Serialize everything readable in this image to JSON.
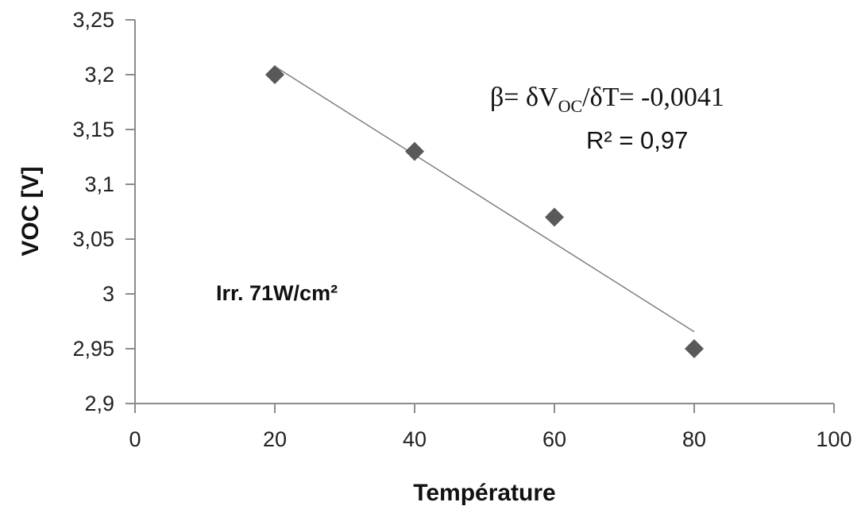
{
  "chart_data": {
    "type": "scatter",
    "xlabel": "Température",
    "ylabel": "VOC [V]",
    "xlim": [
      0,
      100
    ],
    "ylim": [
      2.9,
      3.25
    ],
    "x_ticks": [
      "0",
      "20",
      "40",
      "60",
      "80",
      "100"
    ],
    "y_ticks": [
      "2,9",
      "2,95",
      "3",
      "3,05",
      "3,1",
      "3,15",
      "3,2",
      "3,25"
    ],
    "grid": false,
    "points": [
      {
        "x": 20,
        "y": 3.2
      },
      {
        "x": 40,
        "y": 3.13
      },
      {
        "x": 60,
        "y": 3.07
      },
      {
        "x": 80,
        "y": 2.95
      }
    ],
    "trendline": {
      "x": [
        20,
        80
      ],
      "y": [
        3.2075,
        2.9655
      ]
    },
    "annotations": {
      "irradiance": "Irr. 71W/cm²",
      "beta_prefix": "β= δV",
      "beta_sub": "OC",
      "beta_suffix": "/δT= -0,0041",
      "r2": "R² = 0,97"
    },
    "colors": {
      "marker": "#595959",
      "trendline": "#7f7f7f",
      "axis": "#8c8c8c"
    }
  }
}
